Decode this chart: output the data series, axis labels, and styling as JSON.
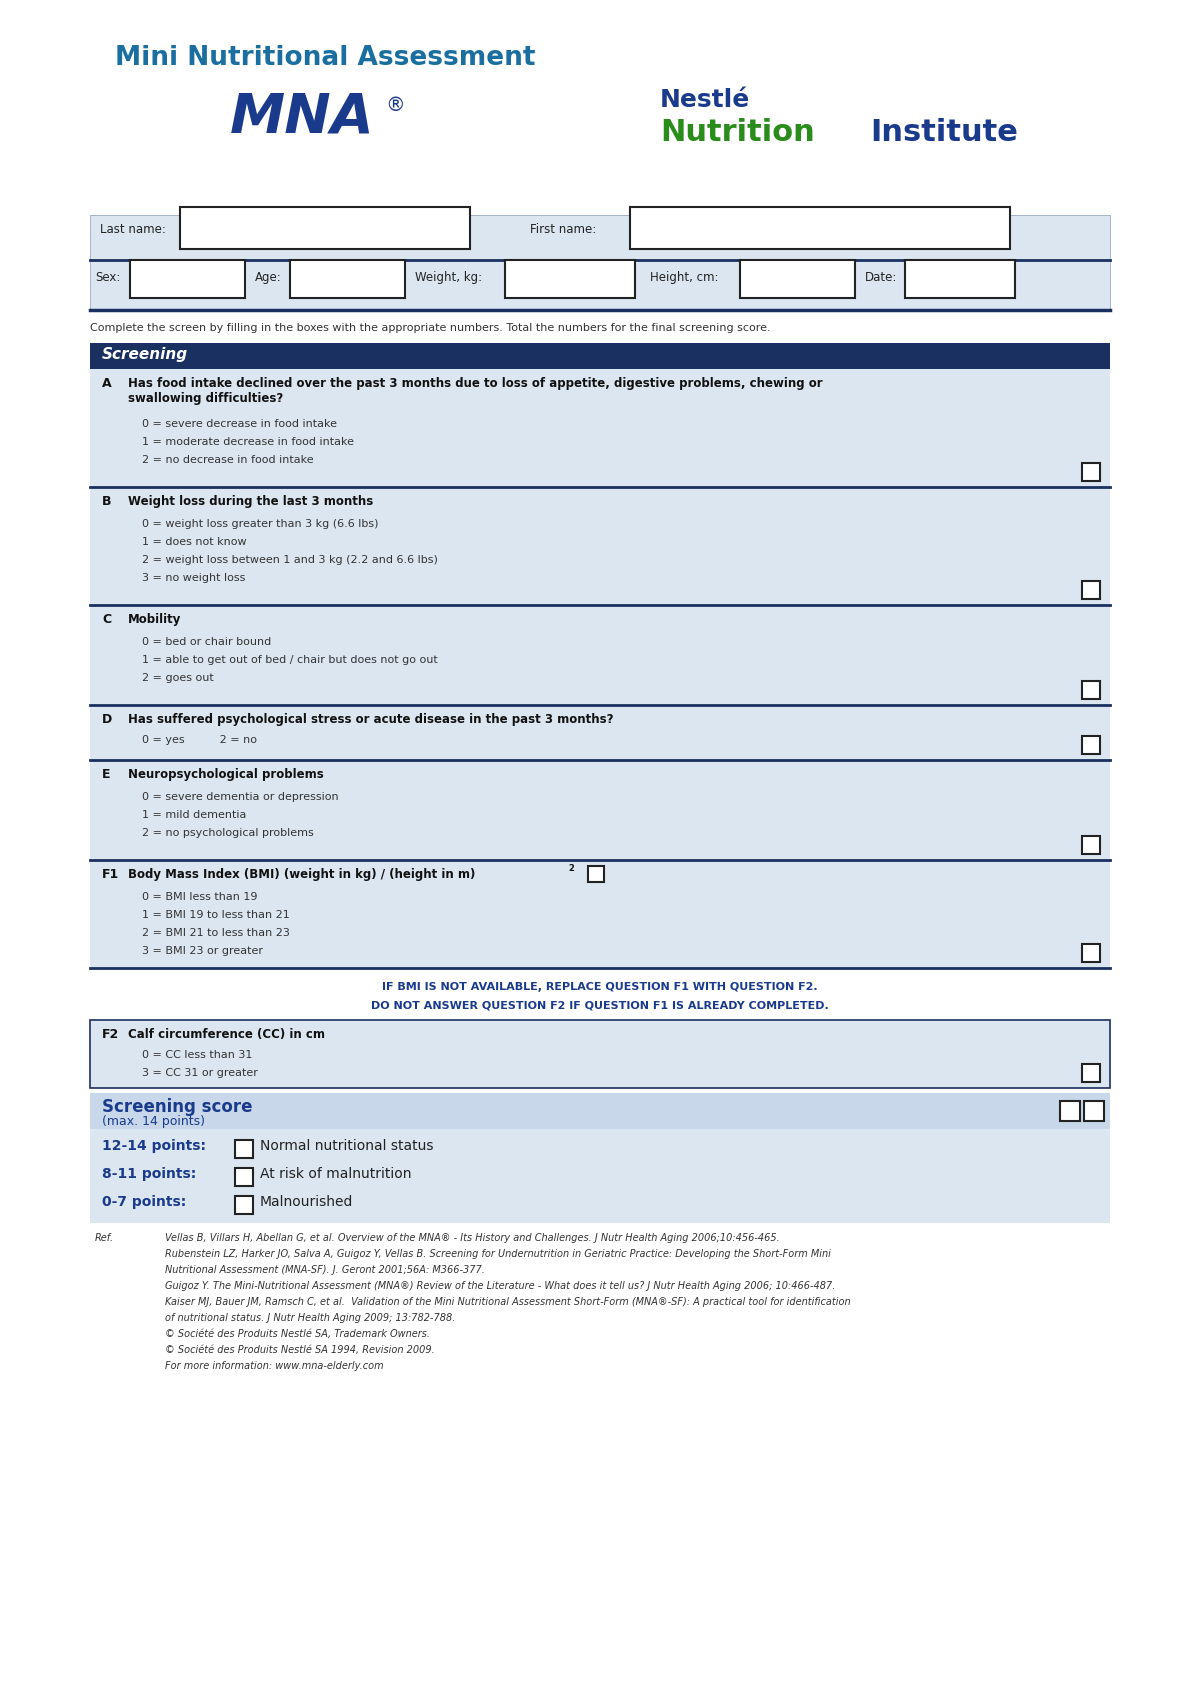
{
  "title": "Mini Nutritional Assessment",
  "mna_text": "MNA",
  "reg_symbol": "®",
  "nestle_line1": "Nestlé",
  "nestle_line2_green": "Nutrition",
  "nestle_line2_blue": "Institute",
  "bg_color": "#ffffff",
  "form_bg": "#dce6f1",
  "header_bg": "#1a3060",
  "header_text_color": "#ffffff",
  "mna_color": "#1a3a8c",
  "nestle_blue": "#1a3a8c",
  "nestle_green": "#2a8c1a",
  "title_color": "#1a6fa0",
  "instruction_text": "Complete the screen by filling in the boxes with the appropriate numbers. Total the numbers for the final screening score.",
  "screening_header": "Screening",
  "section_A_label": "A",
  "section_A_title": "Has food intake declined over the past 3 months due to loss of appetite, digestive problems, chewing or\nswallowing difficulties?",
  "section_A_options": [
    "0 = severe decrease in food intake",
    "1 = moderate decrease in food intake",
    "2 = no decrease in food intake"
  ],
  "section_B_label": "B",
  "section_B_title": "Weight loss during the last 3 months",
  "section_B_options": [
    "0 = weight loss greater than 3 kg (6.6 lbs)",
    "1 = does not know",
    "2 = weight loss between 1 and 3 kg (2.2 and 6.6 lbs)",
    "3 = no weight loss"
  ],
  "section_C_label": "C",
  "section_C_title": "Mobility",
  "section_C_options": [
    "0 = bed or chair bound",
    "1 = able to get out of bed / chair but does not go out",
    "2 = goes out"
  ],
  "section_D_label": "D",
  "section_D_title": "Has suffered psychological stress or acute disease in the past 3 months?",
  "section_D_options": "0 = yes          2 = no",
  "section_E_label": "E",
  "section_E_title": "Neuropsychological problems",
  "section_E_options": [
    "0 = severe dementia or depression",
    "1 = mild dementia",
    "2 = no psychological problems"
  ],
  "section_F1_label": "F1",
  "section_F1_title_main": "Body Mass Index (BMI) (weight in kg) / (height in m)",
  "section_F1_superscript": "2",
  "section_F1_options": [
    "0 = BMI less than 19",
    "1 = BMI 19 to less than 21",
    "2 = BMI 21 to less than 23",
    "3 = BMI 23 or greater"
  ],
  "bmi_note_line1": "IF BMI IS NOT AVAILABLE, REPLACE QUESTION F1 WITH QUESTION F2.",
  "bmi_note_line2": "DO NOT ANSWER QUESTION F2 IF QUESTION F1 IS ALREADY COMPLETED.",
  "section_F2_label": "F2",
  "section_F2_title": "Calf circumference (CC) in cm",
  "section_F2_options": [
    "0 = CC less than 31",
    "3 = CC 31 or greater"
  ],
  "screening_score_title": "Screening score",
  "screening_score_sub": "(max. 14 points)",
  "score_ranges": [
    {
      "range": "12-14 points:",
      "desc": "Normal nutritional status"
    },
    {
      "range": "8-11 points:",
      "desc": "At risk of malnutrition"
    },
    {
      "range": "0-7 points:",
      "desc": "Malnourished"
    }
  ],
  "ref_lines": [
    [
      "Ref.",
      "Vellas B, Villars H, Abellan G, et al. Overview of the MNA® - Its History and Challenges. J Nutr Health Aging 2006;10:456-465."
    ],
    [
      "",
      "Rubenstein LZ, Harker JO, Salva A, Guigoz Y, Vellas B. Screening for Undernutrition in Geriatric Practice: Developing the Short-Form Mini"
    ],
    [
      "",
      "Nutritional Assessment (MNA-SF). J. Geront 2001;56A: M366-377."
    ],
    [
      "",
      "Guigoz Y. The Mini-Nutritional Assessment (MNA®) Review of the Literature - What does it tell us? J Nutr Health Aging 2006; 10:466-487."
    ],
    [
      "",
      "Kaiser MJ, Bauer JM, Ramsch C, et al.  Validation of the Mini Nutritional Assessment Short-Form (MNA®-SF): A practical tool for identification"
    ],
    [
      "",
      "of nutritional status. J Nutr Health Aging 2009; 13:782-788."
    ],
    [
      "",
      "© Société des Produits Nestlé SA, Trademark Owners."
    ],
    [
      "",
      "© Société des Produits Nestlé SA 1994, Revision 2009."
    ],
    [
      "",
      "For more information: www.mna-elderly.com"
    ]
  ],
  "divider_color": "#1a3060",
  "box_border": "#222222",
  "score_bg": "#c8d8ea"
}
